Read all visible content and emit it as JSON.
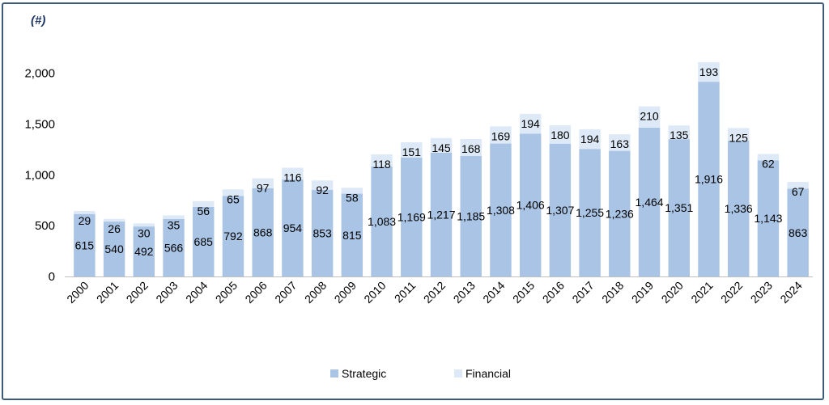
{
  "chart_data": {
    "type": "bar",
    "stacked": true,
    "unit_label": "(#)",
    "ylim": [
      0,
      2100
    ],
    "y_ticks": [
      "0",
      "500",
      "1,000",
      "1,500",
      "2,000"
    ],
    "y_tick_values": [
      0,
      500,
      1000,
      1500,
      2000
    ],
    "categories": [
      "2000",
      "2001",
      "2002",
      "2003",
      "2004",
      "2005",
      "2006",
      "2007",
      "2008",
      "2009",
      "2010",
      "2011",
      "2012",
      "2013",
      "2014",
      "2015",
      "2016",
      "2017",
      "2018",
      "2019",
      "2020",
      "2021",
      "2022",
      "2023",
      "2024"
    ],
    "series": [
      {
        "name": "Strategic",
        "color": "#a9c4e4",
        "values": [
          615,
          540,
          492,
          566,
          685,
          792,
          868,
          954,
          853,
          815,
          1083,
          1169,
          1217,
          1185,
          1308,
          1406,
          1307,
          1255,
          1236,
          1464,
          1351,
          1916,
          1336,
          1143,
          863
        ],
        "labels": [
          "615",
          "540",
          "492",
          "566",
          "685",
          "792",
          "868",
          "954",
          "853",
          "815",
          "1,083",
          "1,169",
          "1,217",
          "1,185",
          "1,308",
          "1,406",
          "1,307",
          "1,255",
          "1,236",
          "1,464",
          "1,351",
          "1,916",
          "1,336",
          "1,143",
          "863"
        ]
      },
      {
        "name": "Financial",
        "color": "#dde9f6",
        "values": [
          29,
          26,
          30,
          35,
          56,
          65,
          97,
          116,
          92,
          58,
          118,
          151,
          145,
          168,
          169,
          194,
          180,
          194,
          163,
          210,
          135,
          193,
          125,
          62,
          67
        ],
        "labels": [
          "29",
          "26",
          "30",
          "35",
          "56",
          "65",
          "97",
          "116",
          "92",
          "58",
          "118",
          "151",
          "145",
          "168",
          "169",
          "194",
          "180",
          "194",
          "163",
          "210",
          "135",
          "193",
          "125",
          "62",
          "67"
        ]
      }
    ],
    "legend_position": "bottom",
    "grid": false
  }
}
